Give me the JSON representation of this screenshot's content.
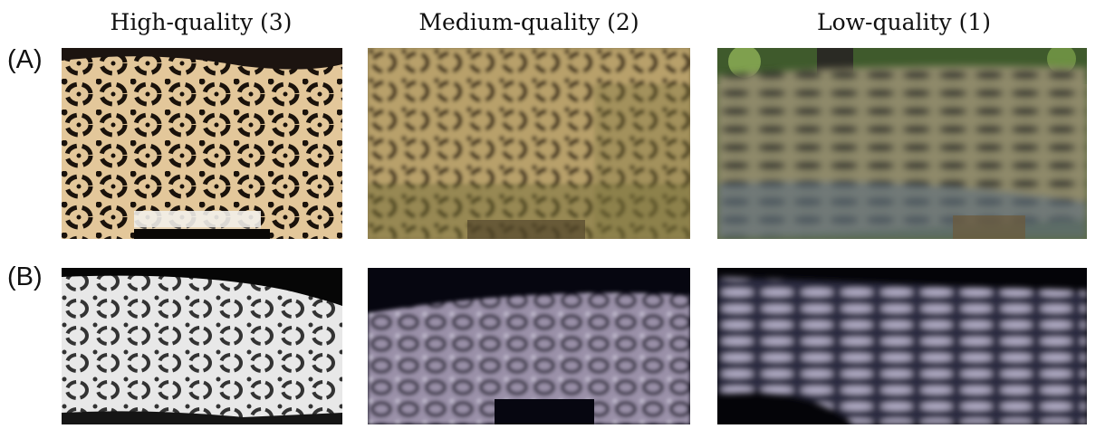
{
  "columns": [
    {
      "title": "High-quality (3)"
    },
    {
      "title": "Medium-quality (2)"
    },
    {
      "title": "Low-quality (1)"
    }
  ],
  "rows": [
    {
      "label": "(A)"
    },
    {
      "label": "(B)"
    }
  ],
  "colors": {
    "daytime_fur": "#e3c79a",
    "daytime_rosette": "#1a120b",
    "night_fur": "#e8e8e8",
    "night_rosette": "#333333",
    "night_background": "#060610"
  }
}
